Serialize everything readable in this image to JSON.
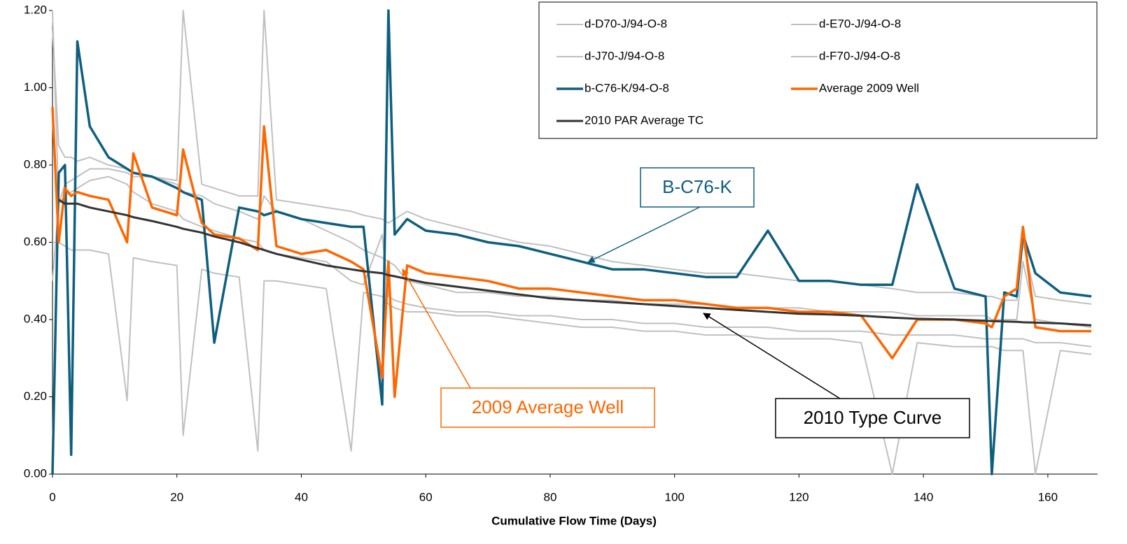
{
  "chart_data": {
    "type": "line",
    "xlabel": "Cumulative Flow Time (Days)",
    "x": [
      0,
      1,
      2,
      3,
      4,
      6,
      9,
      12,
      13,
      16,
      20,
      21,
      24,
      26,
      30,
      33,
      34,
      36,
      40,
      44,
      48,
      50,
      53,
      54,
      55,
      57,
      60,
      65,
      70,
      75,
      80,
      85,
      90,
      95,
      100,
      105,
      110,
      115,
      120,
      125,
      130,
      135,
      139,
      145,
      150,
      151,
      153,
      155,
      156,
      158,
      162,
      167
    ],
    "xlim": [
      0,
      168
    ],
    "xticks": [
      0,
      20,
      40,
      60,
      80,
      100,
      120,
      140,
      160
    ],
    "ylim": [
      0,
      1.2
    ],
    "yticks": [
      {
        "value": 0,
        "label": "0.00"
      },
      {
        "value": 0.2,
        "label": "0.20"
      },
      {
        "value": 0.4,
        "label": "0.40"
      },
      {
        "value": 0.6,
        "label": "0.60"
      },
      {
        "value": 0.8,
        "label": "0.80"
      },
      {
        "value": 1.0,
        "label": "1.00"
      },
      {
        "value": 1.2,
        "label": "1.20"
      }
    ],
    "legend": "upper right",
    "series": [
      {
        "name": "d-D70-J/94-O-8",
        "color": "#c0c0c0",
        "values": [
          1.15,
          0.85,
          0.82,
          0.82,
          0.81,
          0.82,
          0.8,
          0.79,
          0.78,
          0.77,
          0.76,
          1.2,
          0.75,
          0.74,
          0.72,
          0.72,
          1.2,
          0.71,
          0.7,
          0.69,
          0.68,
          0.67,
          0.66,
          0.65,
          0.66,
          0.68,
          0.66,
          0.64,
          0.62,
          0.6,
          0.59,
          0.57,
          0.55,
          0.54,
          0.53,
          0.52,
          0.52,
          0.51,
          0.5,
          0.5,
          0.49,
          0.48,
          0.47,
          0.47,
          0.46,
          0.46,
          0.45,
          0.45,
          0.6,
          0.46,
          0.45,
          0.44
        ]
      },
      {
        "name": "d-E70-J/94-O-8",
        "color": "#c0c0c0",
        "values": [
          0.6,
          0.6,
          0.59,
          0.58,
          0.58,
          0.58,
          0.57,
          0.19,
          0.56,
          0.55,
          0.54,
          0.1,
          0.53,
          0.52,
          0.51,
          0.06,
          0.5,
          0.5,
          0.49,
          0.48,
          0.06,
          0.47,
          0.46,
          0.44,
          0.43,
          0.42,
          0.42,
          0.41,
          0.41,
          0.4,
          0.39,
          0.38,
          0.38,
          0.37,
          0.37,
          0.36,
          0.36,
          0.35,
          0.35,
          0.35,
          0.34,
          0,
          0.34,
          0.33,
          0.33,
          0.33,
          0.32,
          0.32,
          0.32,
          0,
          0.32,
          0.31
        ]
      },
      {
        "name": "d-J70-J/94-O-8",
        "color": "#c0c0c0",
        "values": [
          0.5,
          0.7,
          0.72,
          0.73,
          0.74,
          0.76,
          0.77,
          0.75,
          0.73,
          0.7,
          0.68,
          0.66,
          0.64,
          0.63,
          0.61,
          0.6,
          0.58,
          0.57,
          0.56,
          0.55,
          0.5,
          0.49,
          0.62,
          0.46,
          0.45,
          0.44,
          0.43,
          0.42,
          0.42,
          0.41,
          0.41,
          0.4,
          0.4,
          0.39,
          0.39,
          0.38,
          0.38,
          0.38,
          0.37,
          0.37,
          0.37,
          0.36,
          0.36,
          0.36,
          0.35,
          0.35,
          0.35,
          0.35,
          0.35,
          0.34,
          0.34,
          0.33
        ]
      },
      {
        "name": "d-F70-J/94-O-8",
        "color": "#c0c0c0",
        "values": [
          1.2,
          0.7,
          0.75,
          0.76,
          0.77,
          0.79,
          0.79,
          0.78,
          0.77,
          0.77,
          0.75,
          0.73,
          0.72,
          0.7,
          0.68,
          0.66,
          0.72,
          0.68,
          0.66,
          0.63,
          0.6,
          0.58,
          0.56,
          0.55,
          0.54,
          0.5,
          0.49,
          0.47,
          0.47,
          0.46,
          0.46,
          0.45,
          0.45,
          0.44,
          0.44,
          0.44,
          0.43,
          0.43,
          0.43,
          0.42,
          0.42,
          0.42,
          0.41,
          0.41,
          0.41,
          0.4,
          0.4,
          0.4,
          0.55,
          0.4,
          0.39,
          0.38
        ]
      },
      {
        "name": "b-C76-K/94-O-8",
        "color": "#0e5f7f",
        "values": [
          0,
          0.78,
          0.8,
          0.05,
          1.12,
          0.9,
          0.82,
          0.79,
          0.78,
          0.77,
          0.74,
          0.73,
          0.71,
          0.34,
          0.69,
          0.68,
          0.67,
          0.68,
          0.66,
          0.65,
          0.64,
          0.64,
          0.18,
          1.2,
          0.62,
          0.66,
          0.63,
          0.62,
          0.6,
          0.59,
          0.57,
          0.55,
          0.53,
          0.53,
          0.52,
          0.51,
          0.51,
          0.63,
          0.5,
          0.5,
          0.49,
          0.49,
          0.75,
          0.48,
          0.46,
          0,
          0.47,
          0.46,
          0.62,
          0.52,
          0.47,
          0.46
        ]
      },
      {
        "name": "Average 2009 Well",
        "color": "#ff6600",
        "values": [
          0.95,
          0.6,
          0.74,
          0.72,
          0.73,
          0.72,
          0.71,
          0.6,
          0.83,
          0.69,
          0.67,
          0.84,
          0.65,
          0.62,
          0.61,
          0.58,
          0.9,
          0.59,
          0.57,
          0.58,
          0.55,
          0.53,
          0.25,
          0.55,
          0.2,
          0.54,
          0.52,
          0.51,
          0.5,
          0.48,
          0.48,
          0.47,
          0.46,
          0.45,
          0.45,
          0.44,
          0.43,
          0.43,
          0.42,
          0.42,
          0.41,
          0.3,
          0.4,
          0.4,
          0.39,
          0.38,
          0.46,
          0.48,
          0.64,
          0.38,
          0.37,
          0.37
        ]
      },
      {
        "name": "2010 PAR Average TC",
        "color": "#333333",
        "values": [
          null,
          0.71,
          0.7,
          0.7,
          0.7,
          0.69,
          0.68,
          0.67,
          0.665,
          0.655,
          0.64,
          0.635,
          0.625,
          0.615,
          0.6,
          0.585,
          0.58,
          0.57,
          0.555,
          0.54,
          0.53,
          0.525,
          0.52,
          0.515,
          0.512,
          0.505,
          0.495,
          0.485,
          0.475,
          0.465,
          0.455,
          0.45,
          0.445,
          0.44,
          0.435,
          0.43,
          0.425,
          0.42,
          0.415,
          0.413,
          0.41,
          0.405,
          0.402,
          0.4,
          0.397,
          0.396,
          0.395,
          0.394,
          0.393,
          0.392,
          0.39,
          0.385
        ]
      }
    ],
    "annotations": [
      {
        "text": "B-C76-K",
        "color": "#0e5f7f"
      },
      {
        "text": "2009 Average Well",
        "color": "#ff6600"
      },
      {
        "text": "2010 Type Curve",
        "color": "#000000"
      }
    ]
  }
}
